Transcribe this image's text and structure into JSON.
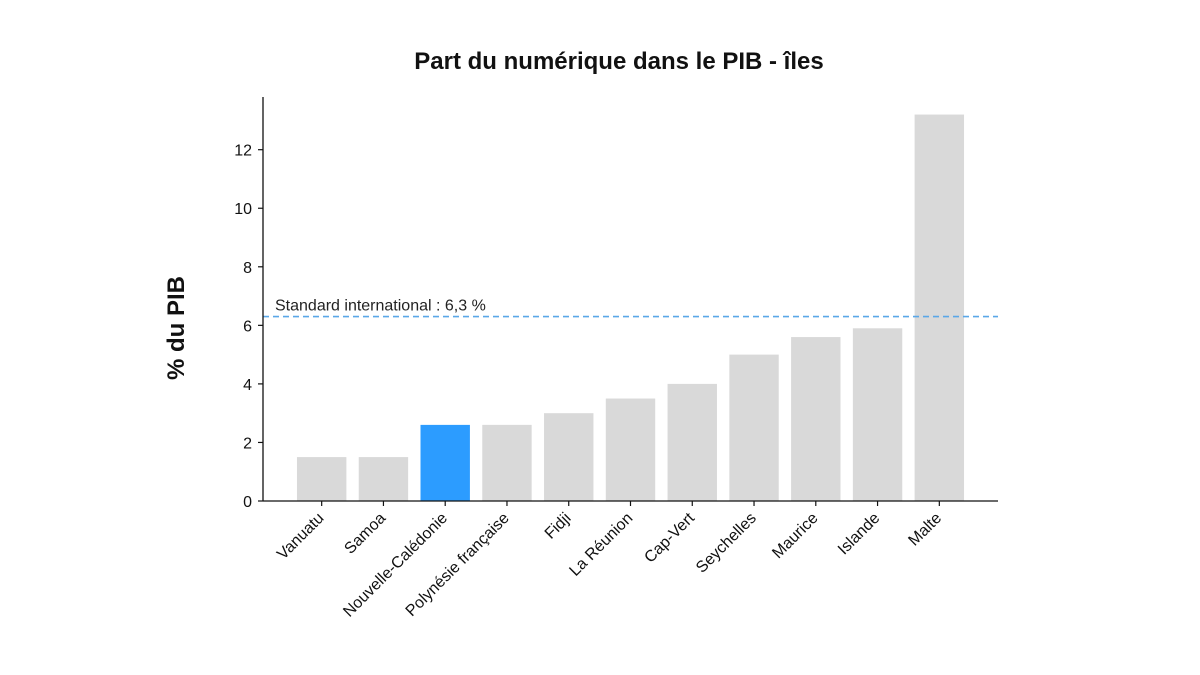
{
  "colors": {
    "bar_default": "#d9d9d9",
    "bar_highlight": "#2c9cff",
    "reference_line": "#5aa7e8",
    "axis": "#111111"
  },
  "chart_data": {
    "type": "bar",
    "title": "Part du numérique dans le PIB - îles",
    "xlabel": "",
    "ylabel": "% du PIB",
    "ylim": [
      0,
      13.8
    ],
    "yticks": [
      0,
      2,
      4,
      6,
      8,
      10,
      12
    ],
    "grid": false,
    "categories": [
      "Vanuatu",
      "Samoa",
      "Nouvelle-Calédonie",
      "Polynésie française",
      "Fidji",
      "La Réunion",
      "Cap-Vert",
      "Seychelles",
      "Maurice",
      "Islande",
      "Malte"
    ],
    "values": [
      1.5,
      1.5,
      2.6,
      2.6,
      3.0,
      3.5,
      4.0,
      5.0,
      5.6,
      5.9,
      13.2
    ],
    "highlight_category": "Nouvelle-Calédonie",
    "reference_line": {
      "value": 6.3,
      "label": "Standard international : 6,3 %",
      "style": "dashed"
    }
  }
}
